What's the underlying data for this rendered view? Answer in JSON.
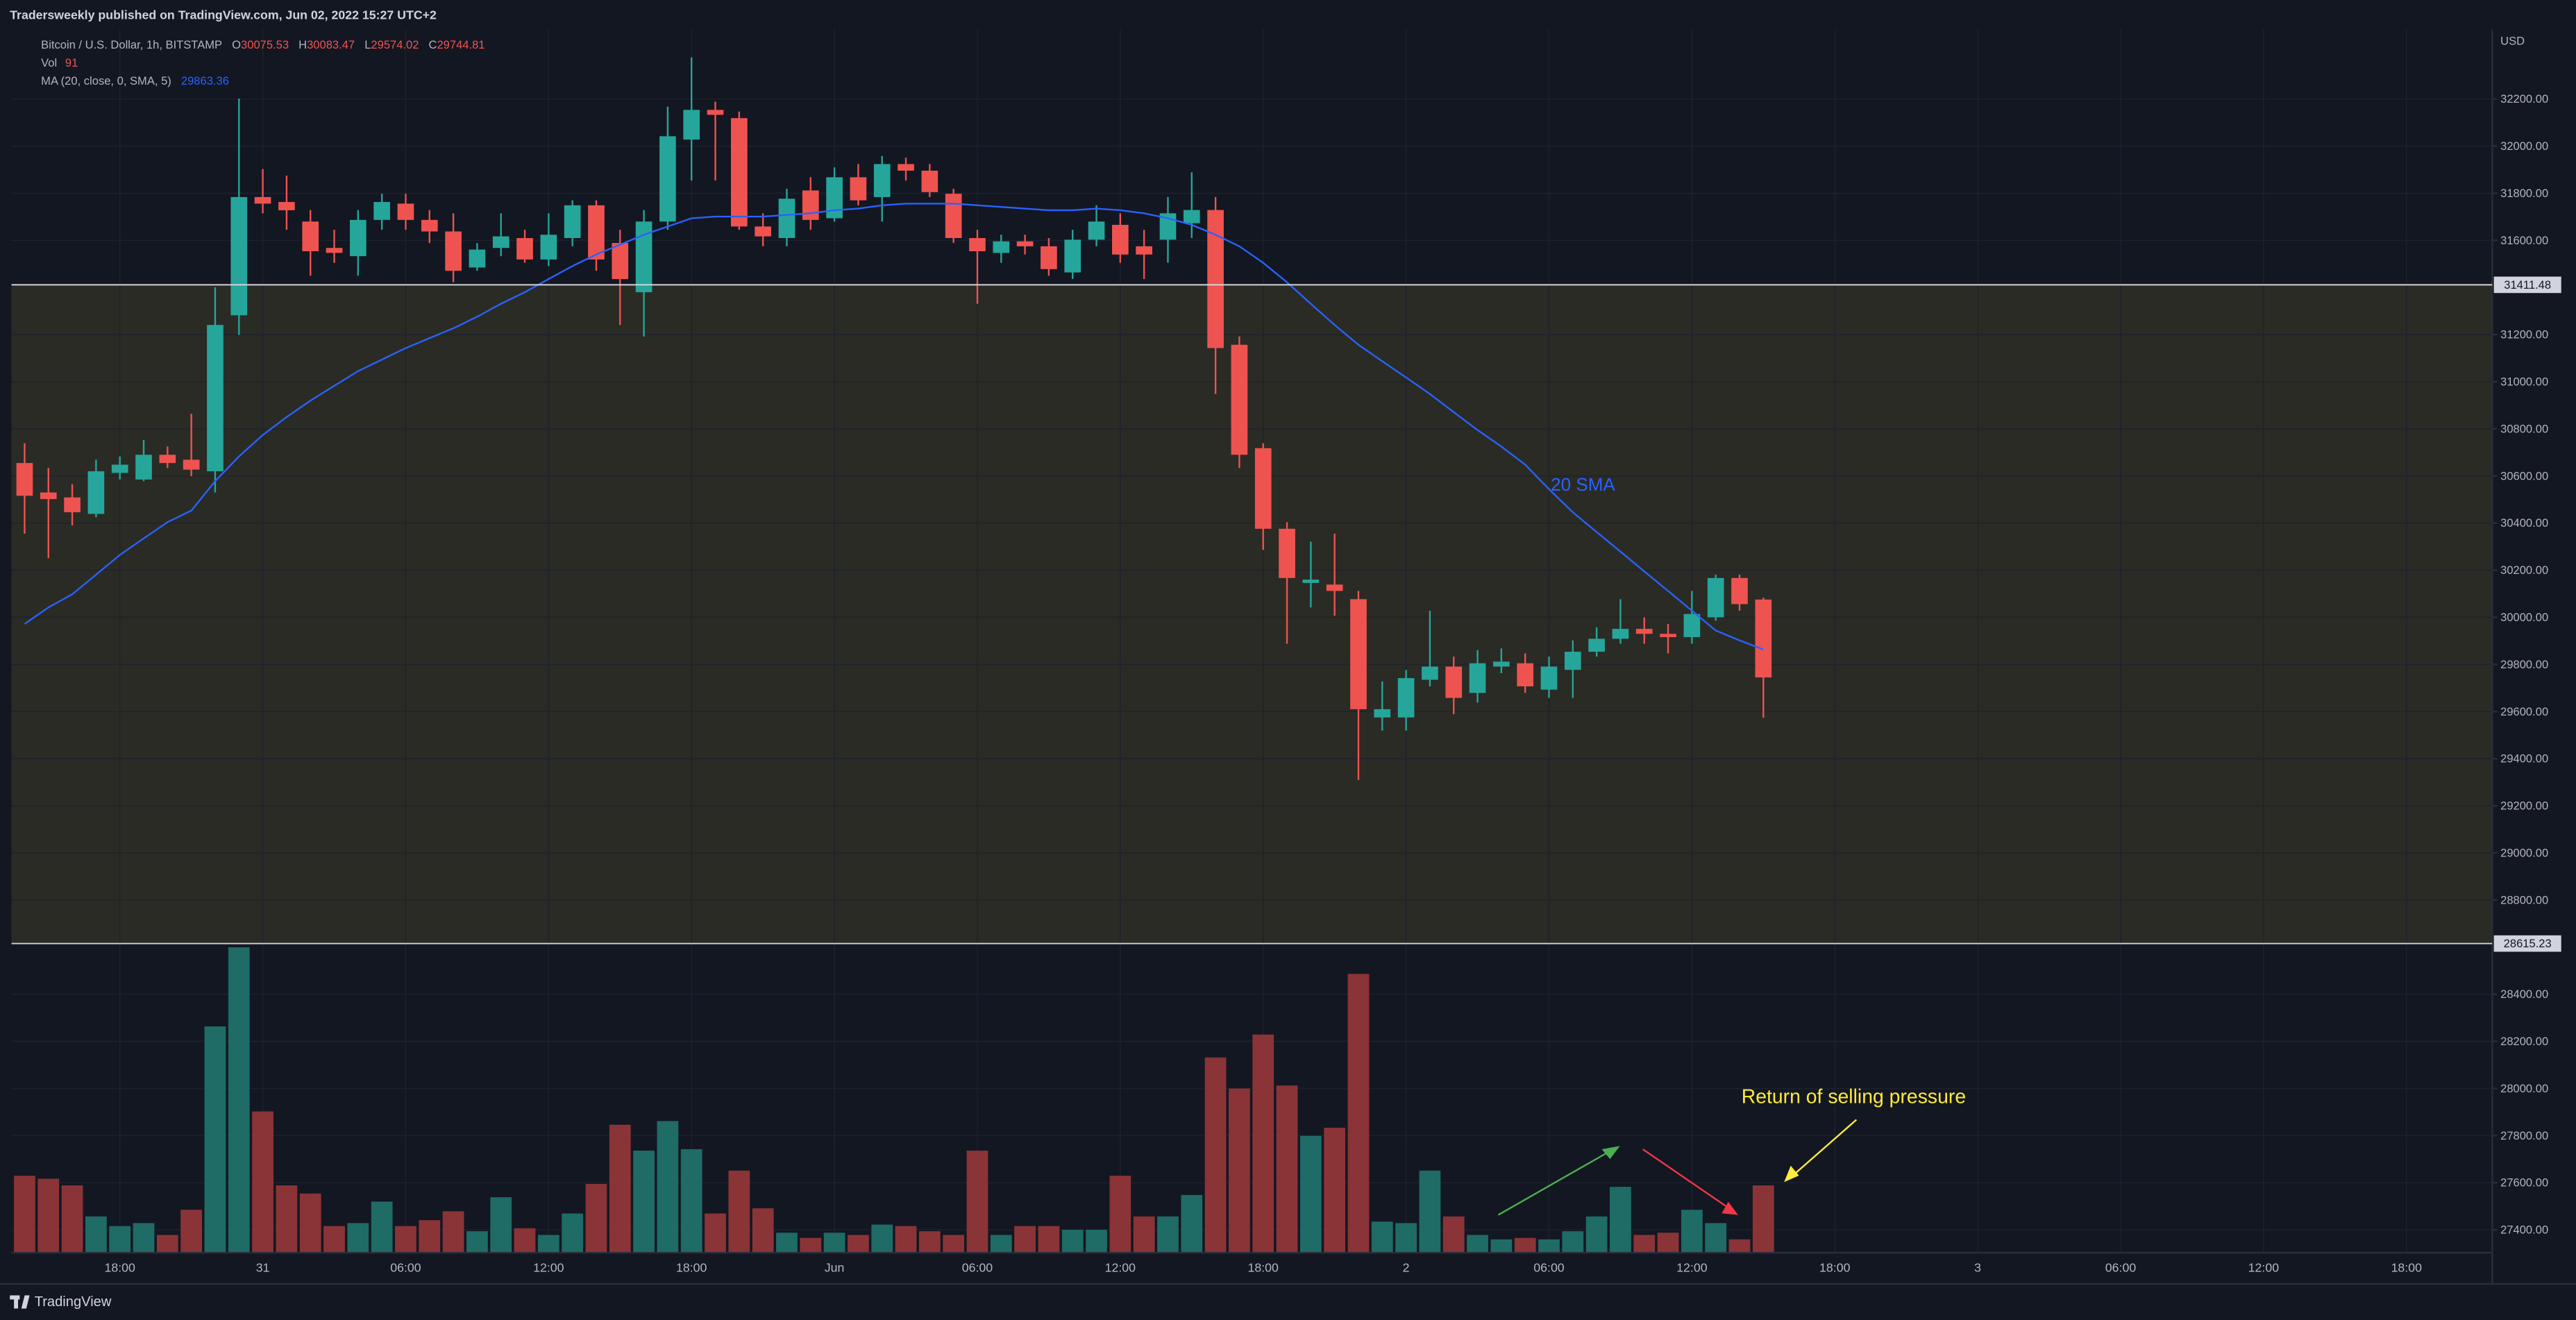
{
  "chart_data": {
    "type": "candlestick",
    "header": "Tradersweekly published on TradingView.com, Jun 02, 2022 15:27 UTC+2",
    "symbol": "Bitcoin / U.S. Dollar, 1h, BITSTAMP",
    "ohlc_labels": [
      "O",
      "H",
      "L",
      "C"
    ],
    "volume_label": "Vol",
    "ma_label": "MA (20, close, 0, SMA, 5)",
    "currency": "USD",
    "footer": "TradingView",
    "up_color": "#26a69a",
    "down_color": "#ef5350",
    "open": [
      30655,
      30530,
      30509,
      30439,
      30613,
      30585,
      30690,
      30669,
      30620,
      31282,
      31784,
      31763,
      31680,
      31568,
      31533,
      31687,
      31756,
      31687,
      31638,
      31485,
      31568,
      31610,
      31519,
      31610,
      31749,
      31589,
      31380,
      31680,
      32028,
      32154,
      32119,
      31659,
      31610,
      31812,
      31694,
      31868,
      31784,
      31924,
      31896,
      31798,
      31610,
      31547,
      31596,
      31575,
      31464,
      31603,
      31666,
      31575,
      31603,
      31673,
      31729,
      31157,
      30718,
      30376,
      30146,
      30139,
      30077,
      29575,
      29575,
      29735,
      29791,
      29679,
      29791,
      29805,
      29693,
      29777,
      29854,
      29909,
      29951,
      29930,
      29916,
      30000,
      30167,
      30075.53
    ],
    "high": [
      30739,
      30634,
      30565,
      30669,
      30683,
      30753,
      30725,
      30864,
      31401,
      32202,
      31903,
      31875,
      31729,
      31645,
      31729,
      31798,
      31798,
      31729,
      31715,
      31589,
      31715,
      31645,
      31715,
      31770,
      31770,
      31645,
      31729,
      32168,
      32377,
      32189,
      32147,
      31715,
      31819,
      31868,
      31910,
      31924,
      31958,
      31951,
      31924,
      31819,
      31645,
      31624,
      31624,
      31610,
      31645,
      31749,
      31715,
      31645,
      31784,
      31889,
      31784,
      31192,
      30739,
      30404,
      30321,
      30355,
      30112,
      29728,
      29777,
      30028,
      29833,
      29861,
      29868,
      29847,
      29833,
      29902,
      29958,
      30077,
      30000,
      29972,
      30112,
      30181,
      30181,
      30083.47
    ],
    "low": [
      30355,
      30251,
      30390,
      30425,
      30585,
      30578,
      30634,
      30599,
      30530,
      31199,
      31715,
      31645,
      31450,
      31505,
      31450,
      31645,
      31645,
      31589,
      31422,
      31471,
      31533,
      31505,
      31491,
      31575,
      31471,
      31241,
      31192,
      31645,
      31854,
      31854,
      31645,
      31575,
      31575,
      31645,
      31680,
      31749,
      31680,
      31854,
      31784,
      31589,
      31331,
      31505,
      31540,
      31450,
      31436,
      31575,
      31505,
      31436,
      31505,
      31610,
      30948,
      30634,
      30286,
      29888,
      30042,
      30007,
      29310,
      29519,
      29519,
      29707,
      29589,
      29638,
      29763,
      29679,
      29658,
      29658,
      29833,
      29888,
      29888,
      29847,
      29888,
      29986,
      30028,
      29574.02
    ],
    "close": [
      30516,
      30502,
      30446,
      30620,
      30648,
      30690,
      30655,
      30627,
      31241,
      31784,
      31756,
      31728,
      31554,
      31547,
      31687,
      31763,
      31687,
      31638,
      31471,
      31561,
      31617,
      31519,
      31624,
      31749,
      31519,
      31436,
      31680,
      32042,
      32154,
      32133,
      31659,
      31617,
      31777,
      31687,
      31868,
      31770,
      31924,
      31896,
      31805,
      31610,
      31554,
      31596,
      31575,
      31478,
      31603,
      31680,
      31540,
      31540,
      31715,
      31729,
      31143,
      30690,
      30376,
      30167,
      30160,
      30112,
      29610,
      29610,
      29742,
      29791,
      29658,
      29805,
      29812,
      29707,
      29791,
      29854,
      29909,
      29951,
      29930,
      29916,
      30014,
      30167,
      30056,
      29744.81
    ],
    "volume": {
      "name": "Vol",
      "up_color": "#1f6b66",
      "down_color": "#8a3437",
      "y2lim": [
        0,
        1654
      ],
      "values": [
        104,
        100,
        91,
        49,
        36,
        40,
        24,
        58,
        306,
        413,
        191,
        91,
        80,
        36,
        40,
        69,
        36,
        44,
        56,
        29,
        75,
        33,
        24,
        53,
        93,
        173,
        138,
        178,
        140,
        53,
        111,
        60,
        27,
        20,
        27,
        24,
        38,
        36,
        29,
        24,
        138,
        24,
        36,
        36,
        31,
        31,
        104,
        49,
        49,
        78,
        264,
        222,
        295,
        226,
        158,
        169,
        377,
        42,
        40,
        111,
        49,
        24,
        18,
        20,
        18,
        29,
        49,
        89,
        24,
        27,
        58,
        40,
        18,
        91
      ]
    },
    "sma": {
      "name": "20 SMA",
      "color": "#2962ff",
      "values": [
        29972,
        30042,
        30098,
        30181,
        30265,
        30335,
        30404,
        30453,
        30578,
        30683,
        30774,
        30850,
        30920,
        30983,
        31045,
        31094,
        31143,
        31185,
        31227,
        31276,
        31331,
        31380,
        31436,
        31491,
        31540,
        31582,
        31624,
        31659,
        31694,
        31701,
        31701,
        31701,
        31708,
        31715,
        31728,
        31735,
        31749,
        31756,
        31756,
        31756,
        31749,
        31742,
        31735,
        31728,
        31728,
        31735,
        31728,
        31715,
        31694,
        31666,
        31624,
        31575,
        31505,
        31422,
        31331,
        31241,
        31157,
        31087,
        31018,
        30948,
        30871,
        30795,
        30725,
        30648,
        30544,
        30446,
        30362,
        30279,
        30195,
        30112,
        30028,
        29944,
        29902,
        29863.36
      ]
    },
    "annotation": "Return of selling pressure",
    "levels": [
      {
        "value": 31411.48,
        "label": "31411.48"
      },
      {
        "value": 28615.23,
        "label": "28615.23"
      }
    ],
    "zone_color": "#2a2b25",
    "grid": true,
    "ylim": [
      27303,
      32495
    ],
    "yticks": [
      {
        "value": 27400,
        "label": "27400.00"
      },
      {
        "value": 27600,
        "label": "27600.00"
      },
      {
        "value": 27800,
        "label": "27800.00"
      },
      {
        "value": 28000,
        "label": "28000.00"
      },
      {
        "value": 28200,
        "label": "28200.00"
      },
      {
        "value": 28400,
        "label": "28400.00"
      },
      {
        "value": 28800,
        "label": "28800.00"
      },
      {
        "value": 29000,
        "label": "29000.00"
      },
      {
        "value": 29200,
        "label": "29200.00"
      },
      {
        "value": 29400,
        "label": "29400.00"
      },
      {
        "value": 29600,
        "label": "29600.00"
      },
      {
        "value": 29800,
        "label": "29800.00"
      },
      {
        "value": 30000,
        "label": "30000.00"
      },
      {
        "value": 30200,
        "label": "30200.00"
      },
      {
        "value": 30400,
        "label": "30400.00"
      },
      {
        "value": 30600,
        "label": "30600.00"
      },
      {
        "value": 30800,
        "label": "30800.00"
      },
      {
        "value": 31000,
        "label": "31000.00"
      },
      {
        "value": 31200,
        "label": "31200.00"
      },
      {
        "value": 31600,
        "label": "31600.00"
      },
      {
        "value": 31800,
        "label": "31800.00"
      },
      {
        "value": 32000,
        "label": "32000.00"
      },
      {
        "value": 32200,
        "label": "32200.00"
      }
    ],
    "xlim": [
      -0.55,
      103.6
    ],
    "xticks": [
      {
        "value": 4,
        "label": "18:00"
      },
      {
        "value": 10,
        "label": "31"
      },
      {
        "value": 16,
        "label": "06:00"
      },
      {
        "value": 22,
        "label": "12:00"
      },
      {
        "value": 28,
        "label": "18:00"
      },
      {
        "value": 34,
        "label": "Jun"
      },
      {
        "value": 40,
        "label": "06:00"
      },
      {
        "value": 46,
        "label": "12:00"
      },
      {
        "value": 52,
        "label": "18:00"
      },
      {
        "value": 58,
        "label": "2"
      },
      {
        "value": 64,
        "label": "06:00"
      },
      {
        "value": 70,
        "label": "12:00"
      },
      {
        "value": 76,
        "label": "18:00"
      },
      {
        "value": 82,
        "label": "3"
      },
      {
        "value": 88,
        "label": "06:00"
      },
      {
        "value": 94,
        "label": "12:00"
      },
      {
        "value": 100,
        "label": "18:00"
      }
    ]
  }
}
